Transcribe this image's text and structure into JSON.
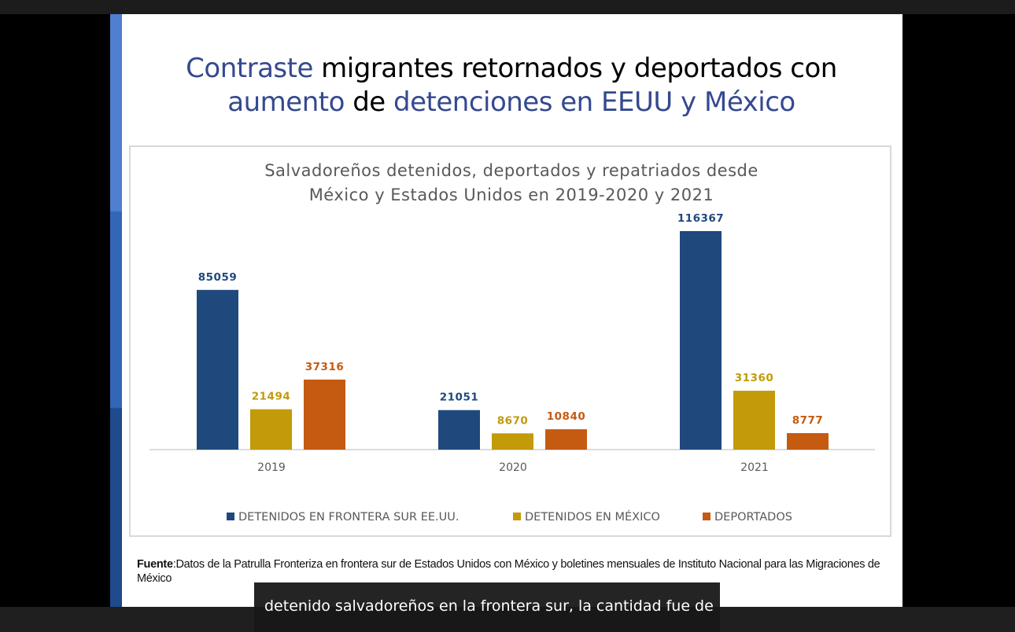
{
  "slide": {
    "title_parts": [
      {
        "text": "Contraste",
        "highlight": true
      },
      {
        "text": " migrantes retornados y deportados con ",
        "highlight": false
      },
      {
        "text": "aumento",
        "highlight": true
      },
      {
        "text": " de ",
        "highlight": false
      },
      {
        "text": "detenciones en EEUU y México",
        "highlight": true
      }
    ],
    "source_label": "Fuente",
    "source_text": ":Datos de la Patrulla Fronteriza en frontera sur de Estados Unidos con México y boletines mensuales de Instituto Nacional para las Migraciones de México"
  },
  "caption": {
    "text": "detenido salvadoreños en la frontera sur, la cantidad fue de"
  },
  "colors": {
    "highlight": "#34498f",
    "series1": "#1f497d",
    "series2": "#c29a0a",
    "series3": "#c55a11"
  },
  "chart_data": {
    "type": "bar",
    "title_line1": "Salvadoreños  detenidos, deportados y repatriados desde",
    "title_line2": "México y Estados Unidos en 2019-2020 y 2021",
    "categories": [
      "2019",
      "2020",
      "2021"
    ],
    "series": [
      {
        "name": "DETENIDOS EN FRONTERA SUR EE.UU.",
        "values": [
          85059,
          21051,
          116367
        ],
        "color": "#1f497d"
      },
      {
        "name": "DETENIDOS EN MÉXICO",
        "values": [
          21494,
          8670,
          31360
        ],
        "color": "#c29a0a"
      },
      {
        "name": "DEPORTADOS",
        "values": [
          37316,
          10840,
          8777
        ],
        "color": "#c55a11"
      }
    ],
    "ylim": [
      0,
      116367
    ],
    "grid": false,
    "data_labels": true,
    "legend_position": "bottom"
  }
}
